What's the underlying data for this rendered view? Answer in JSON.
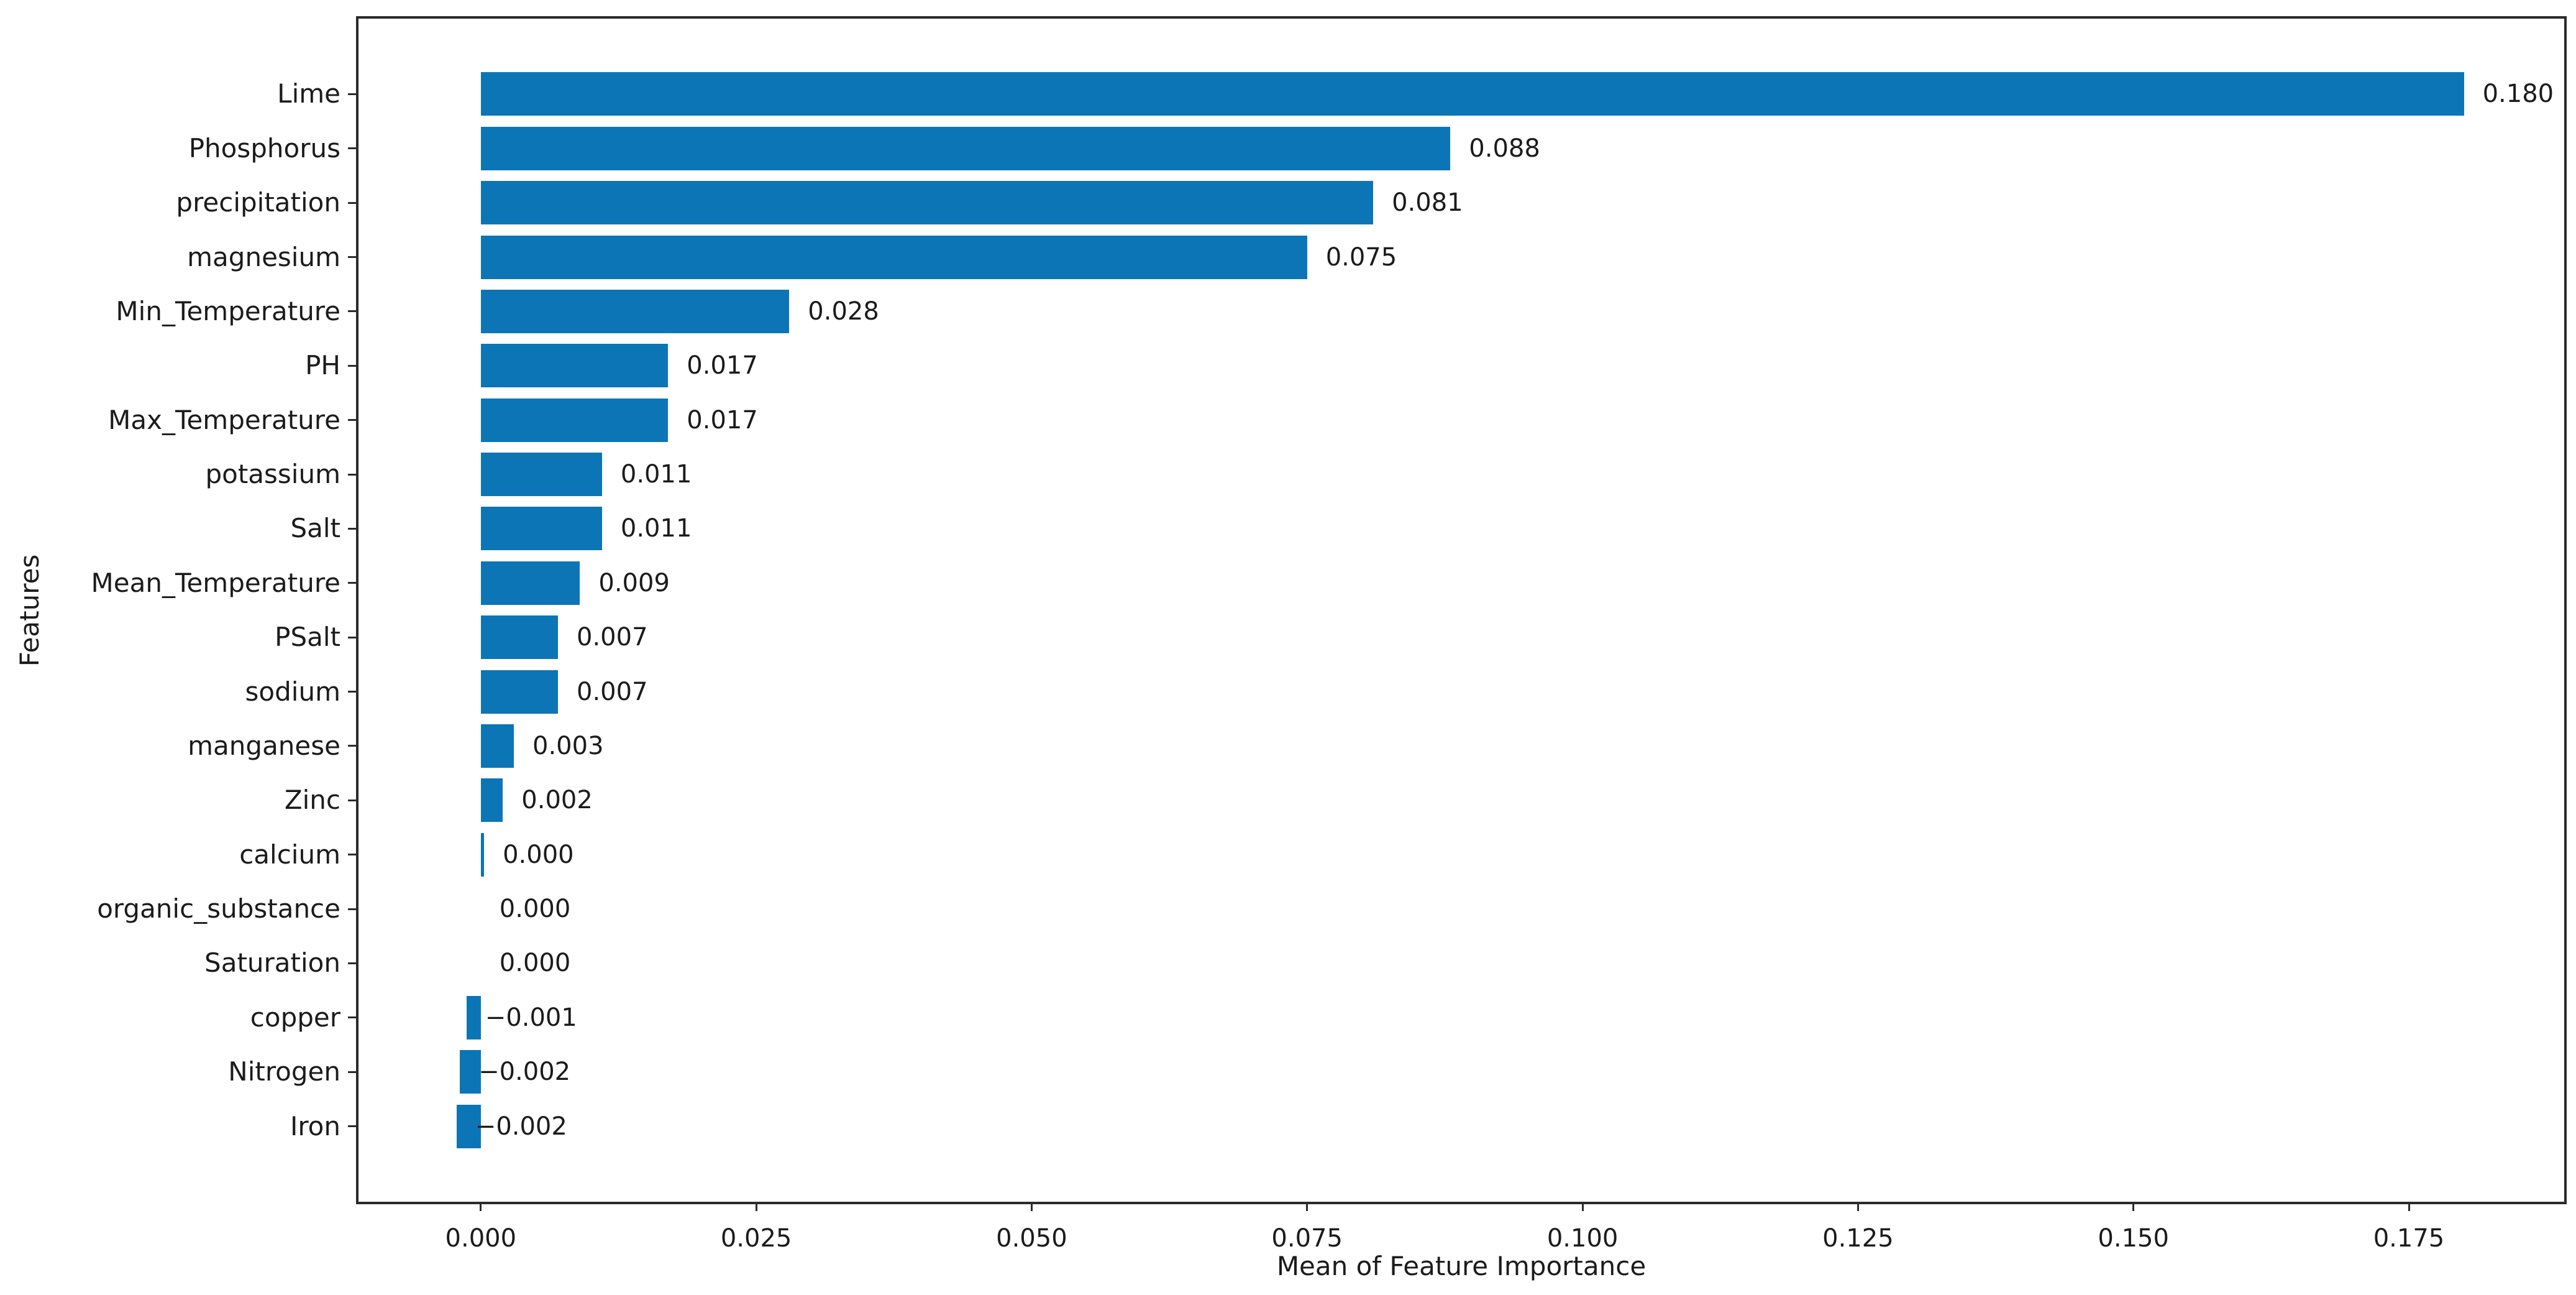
{
  "chart_data": {
    "type": "bar",
    "orientation": "horizontal",
    "title": "",
    "xlabel": "Mean of Feature Importance",
    "ylabel": "Features",
    "bar_color": "#0c75b6",
    "axis_color": "#2b2b2b",
    "text_color": "#1b1b1b",
    "grid": false,
    "legend": null,
    "categories": [
      "Lime",
      "Phosphorus",
      "precipitation",
      "magnesium",
      "Min_Temperature",
      "PH",
      "Max_Temperature",
      "potassium",
      "Salt",
      "Mean_Temperature",
      "PSalt",
      "sodium",
      "manganese",
      "Zinc",
      "calcium",
      "organic_substance",
      "Saturation",
      "copper",
      "Nitrogen",
      "Iron"
    ],
    "values": [
      0.18,
      0.088,
      0.081,
      0.075,
      0.028,
      0.017,
      0.017,
      0.011,
      0.011,
      0.009,
      0.007,
      0.007,
      0.003,
      0.002,
      0.0003,
      0.0,
      0.0,
      -0.0013,
      -0.0019,
      -0.0022
    ],
    "value_labels": [
      "0.180",
      "0.088",
      "0.081",
      "0.075",
      "0.028",
      "0.017",
      "0.017",
      "0.011",
      "0.011",
      "0.009",
      "0.007",
      "0.007",
      "0.003",
      "0.002",
      "0.000",
      "0.000",
      "0.000",
      "−0.001",
      "−0.002",
      "−0.002"
    ],
    "x_ticks": {
      "values": [
        0.0,
        0.025,
        0.05,
        0.075,
        0.1,
        0.125,
        0.15,
        0.175
      ],
      "labels": [
        "0.000",
        "0.025",
        "0.050",
        "0.075",
        "0.100",
        "0.125",
        "0.150",
        "0.175"
      ]
    },
    "xlim": [
      -0.0111,
      0.1891
    ]
  }
}
